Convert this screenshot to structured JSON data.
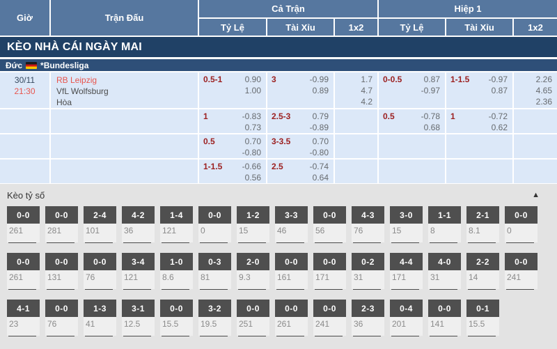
{
  "table_header": {
    "col_time": "Giờ",
    "col_match": "Trận Đấu",
    "group_full": "Cả Trận",
    "group_half": "Hiệp 1",
    "sub_handicap": "Tỷ Lệ",
    "sub_over_under": "Tài Xỉu",
    "sub_1x2": "1x2"
  },
  "banner_title": "KÈO NHÀ CÁI NGÀY MAI",
  "league": {
    "country": "Đức",
    "flag": "germany-flag",
    "name": "*Bundesliga"
  },
  "match": {
    "date": "30/11",
    "time": "21:30",
    "home": "RB Leipzig",
    "away": "VfL Wolfsburg",
    "draw_label": "Hòa"
  },
  "odds_rows": [
    {
      "ft_hc": {
        "label": "0.5-1",
        "odds": [
          "0.90",
          "1.00"
        ]
      },
      "ft_ou": {
        "label": "3",
        "odds": [
          "-0.99",
          "0.89"
        ]
      },
      "ft_1x2": [
        "1.7",
        "4.7",
        "4.2"
      ],
      "h1_hc": {
        "label": "0-0.5",
        "odds": [
          "0.87",
          "-0.97"
        ]
      },
      "h1_ou": {
        "label": "1-1.5",
        "odds": [
          "-0.97",
          "0.87"
        ]
      },
      "h1_1x2": [
        "2.26",
        "4.65",
        "2.36"
      ]
    },
    {
      "ft_hc": {
        "label": "1",
        "odds": [
          "-0.83",
          "0.73"
        ]
      },
      "ft_ou": {
        "label": "2.5-3",
        "odds": [
          "0.79",
          "-0.89"
        ]
      },
      "ft_1x2": null,
      "h1_hc": {
        "label": "0.5",
        "odds": [
          "-0.78",
          "0.68"
        ]
      },
      "h1_ou": {
        "label": "1",
        "odds": [
          "-0.72",
          "0.62"
        ]
      },
      "h1_1x2": null
    },
    {
      "ft_hc": {
        "label": "0.5",
        "odds": [
          "0.70",
          "-0.80"
        ]
      },
      "ft_ou": {
        "label": "3-3.5",
        "odds": [
          "0.70",
          "-0.80"
        ]
      },
      "ft_1x2": null,
      "h1_hc": null,
      "h1_ou": null,
      "h1_1x2": null
    },
    {
      "ft_hc": {
        "label": "1-1.5",
        "odds": [
          "-0.66",
          "0.56"
        ]
      },
      "ft_ou": {
        "label": "2.5",
        "odds": [
          "-0.74",
          "0.64"
        ]
      },
      "ft_1x2": null,
      "h1_hc": null,
      "h1_ou": null,
      "h1_1x2": null
    }
  ],
  "score_section": {
    "title": "Kèo tỷ số",
    "collapse_glyph": "▲",
    "rows": [
      [
        {
          "score": "0-0",
          "value": "261"
        },
        {
          "score": "0-0",
          "value": "281"
        },
        {
          "score": "2-4",
          "value": "101"
        },
        {
          "score": "4-2",
          "value": "36"
        },
        {
          "score": "1-4",
          "value": "121"
        },
        {
          "score": "0-0",
          "value": "0"
        },
        {
          "score": "1-2",
          "value": "15"
        },
        {
          "score": "3-3",
          "value": "46"
        },
        {
          "score": "0-0",
          "value": "56"
        },
        {
          "score": "4-3",
          "value": "76"
        },
        {
          "score": "3-0",
          "value": "15"
        },
        {
          "score": "1-1",
          "value": "8"
        },
        {
          "score": "2-1",
          "value": "8.1"
        },
        {
          "score": "0-0",
          "value": "0"
        }
      ],
      [
        {
          "score": "0-0",
          "value": "261"
        },
        {
          "score": "0-0",
          "value": "131"
        },
        {
          "score": "0-0",
          "value": "76"
        },
        {
          "score": "3-4",
          "value": "121"
        },
        {
          "score": "1-0",
          "value": "8.6"
        },
        {
          "score": "0-3",
          "value": "81"
        },
        {
          "score": "2-0",
          "value": "9.3"
        },
        {
          "score": "0-0",
          "value": "161"
        },
        {
          "score": "0-0",
          "value": "171"
        },
        {
          "score": "0-2",
          "value": "31"
        },
        {
          "score": "4-4",
          "value": "171"
        },
        {
          "score": "4-0",
          "value": "31"
        },
        {
          "score": "2-2",
          "value": "14"
        },
        {
          "score": "0-0",
          "value": "241"
        }
      ],
      [
        {
          "score": "4-1",
          "value": "23"
        },
        {
          "score": "0-0",
          "value": "76"
        },
        {
          "score": "1-3",
          "value": "41"
        },
        {
          "score": "3-1",
          "value": "12.5"
        },
        {
          "score": "0-0",
          "value": "15.5"
        },
        {
          "score": "3-2",
          "value": "19.5"
        },
        {
          "score": "0-0",
          "value": "251"
        },
        {
          "score": "0-0",
          "value": "261"
        },
        {
          "score": "0-0",
          "value": "241"
        },
        {
          "score": "2-3",
          "value": "36"
        },
        {
          "score": "0-4",
          "value": "201"
        },
        {
          "score": "0-0",
          "value": "141"
        },
        {
          "score": "0-1",
          "value": "15.5"
        }
      ]
    ]
  },
  "colors": {
    "header_blue": "#56779f",
    "banner_navy": "#204166",
    "league_navy": "#2e4f78",
    "cell_light_blue": "#dce8f8",
    "accent_red": "#e8554d",
    "handicap_maroon": "#9c2121",
    "score_box_gray": "#4f4f4f",
    "section_bg_gray": "#e3e3e3"
  }
}
